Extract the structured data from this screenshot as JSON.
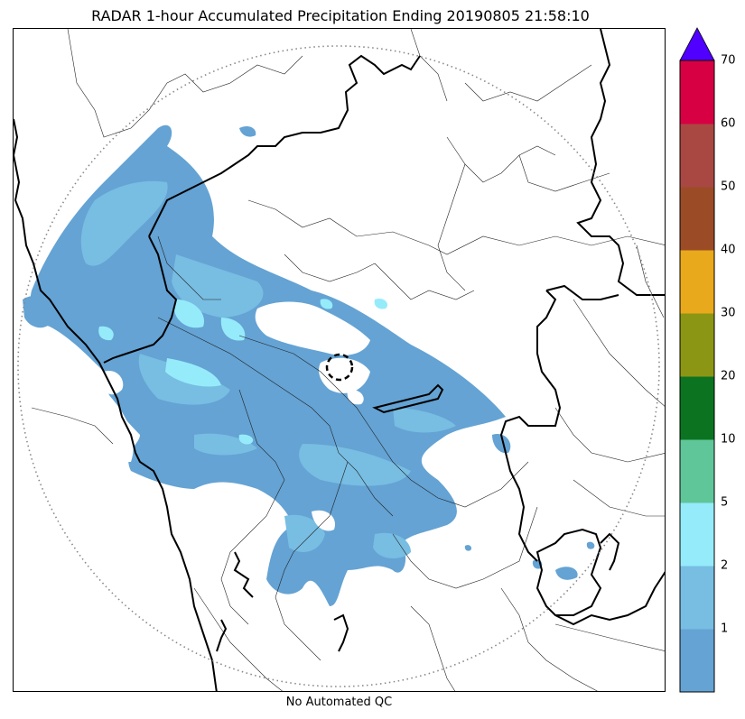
{
  "title": "RADAR 1-hour Accumulated Precipitation Ending 20190805 21:58:10",
  "footer": "No Automated QC",
  "colorbar": {
    "labels": [
      "1",
      "2",
      "5",
      "10",
      "20",
      "30",
      "40",
      "50",
      "60",
      "70"
    ],
    "bins": [
      {
        "color": "#64a3d4"
      },
      {
        "color": "#78bde2"
      },
      {
        "color": "#96ebfb"
      },
      {
        "color": "#5fc69a"
      },
      {
        "color": "#0c7420"
      },
      {
        "color": "#8b9614"
      },
      {
        "color": "#e9a91c"
      },
      {
        "color": "#9b4c27"
      },
      {
        "color": "#a94843"
      },
      {
        "color": "#d70043"
      }
    ],
    "extend_color": "#5000ff"
  },
  "map": {
    "range_ring_color": "#888888",
    "radar_site_marker": "dashed-circle"
  }
}
